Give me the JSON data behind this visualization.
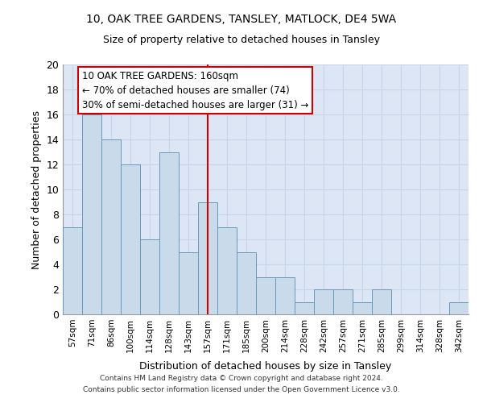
{
  "title_line1": "10, OAK TREE GARDENS, TANSLEY, MATLOCK, DE4 5WA",
  "title_line2": "Size of property relative to detached houses in Tansley",
  "xlabel": "Distribution of detached houses by size in Tansley",
  "ylabel": "Number of detached properties",
  "categories": [
    "57sqm",
    "71sqm",
    "86sqm",
    "100sqm",
    "114sqm",
    "128sqm",
    "143sqm",
    "157sqm",
    "171sqm",
    "185sqm",
    "200sqm",
    "214sqm",
    "228sqm",
    "242sqm",
    "257sqm",
    "271sqm",
    "285sqm",
    "299sqm",
    "314sqm",
    "328sqm",
    "342sqm"
  ],
  "values": [
    7,
    16,
    14,
    12,
    6,
    13,
    5,
    9,
    7,
    5,
    3,
    3,
    1,
    2,
    2,
    1,
    2,
    0,
    0,
    0,
    1
  ],
  "bar_color": "#c9daea",
  "bar_edgecolor": "#6699bb",
  "vline_x": 7,
  "vline_color": "#cc0000",
  "annotation_line1": "10 OAK TREE GARDENS: 160sqm",
  "annotation_line2": "← 70% of detached houses are smaller (74)",
  "annotation_line3": "30% of semi-detached houses are larger (31) →",
  "annotation_box_color": "#cc0000",
  "footer_line1": "Contains HM Land Registry data © Crown copyright and database right 2024.",
  "footer_line2": "Contains public sector information licensed under the Open Government Licence v3.0.",
  "ylim": [
    0,
    20
  ],
  "yticks": [
    0,
    2,
    4,
    6,
    8,
    10,
    12,
    14,
    16,
    18,
    20
  ],
  "grid_color": "#c8d4e8",
  "background_color": "#dce6f5"
}
